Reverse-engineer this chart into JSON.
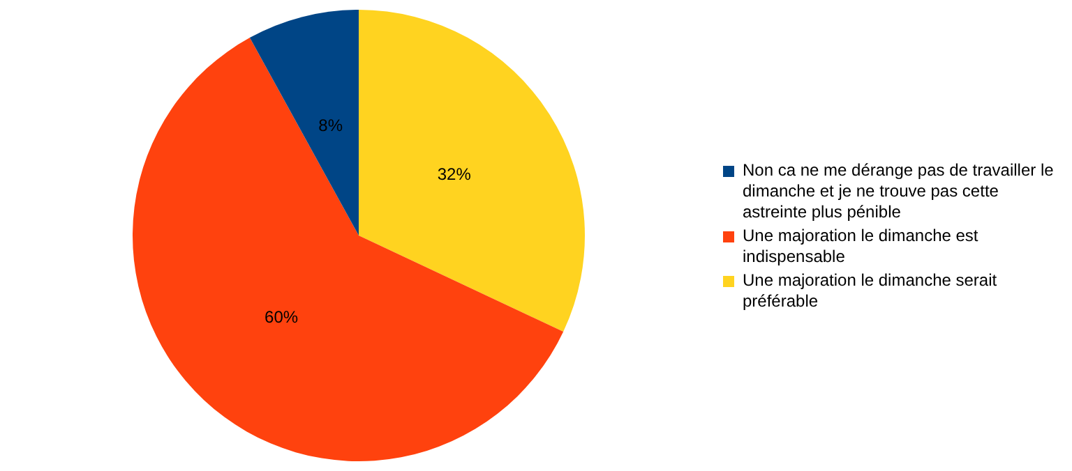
{
  "chart_data": {
    "type": "pie",
    "categories": [
      "Non ca ne me dérange pas de travailler le dimanche et je ne trouve pas cette astreinte plus pénible",
      "Une majoration le dimanche est indispensable",
      "Une majoration le dimanche serait préférable"
    ],
    "values": [
      8,
      60,
      32
    ],
    "value_labels": [
      "8%",
      "60%",
      "32%"
    ],
    "colors": [
      "#004586",
      "#ff420e",
      "#ffd320"
    ],
    "legend": "right"
  }
}
